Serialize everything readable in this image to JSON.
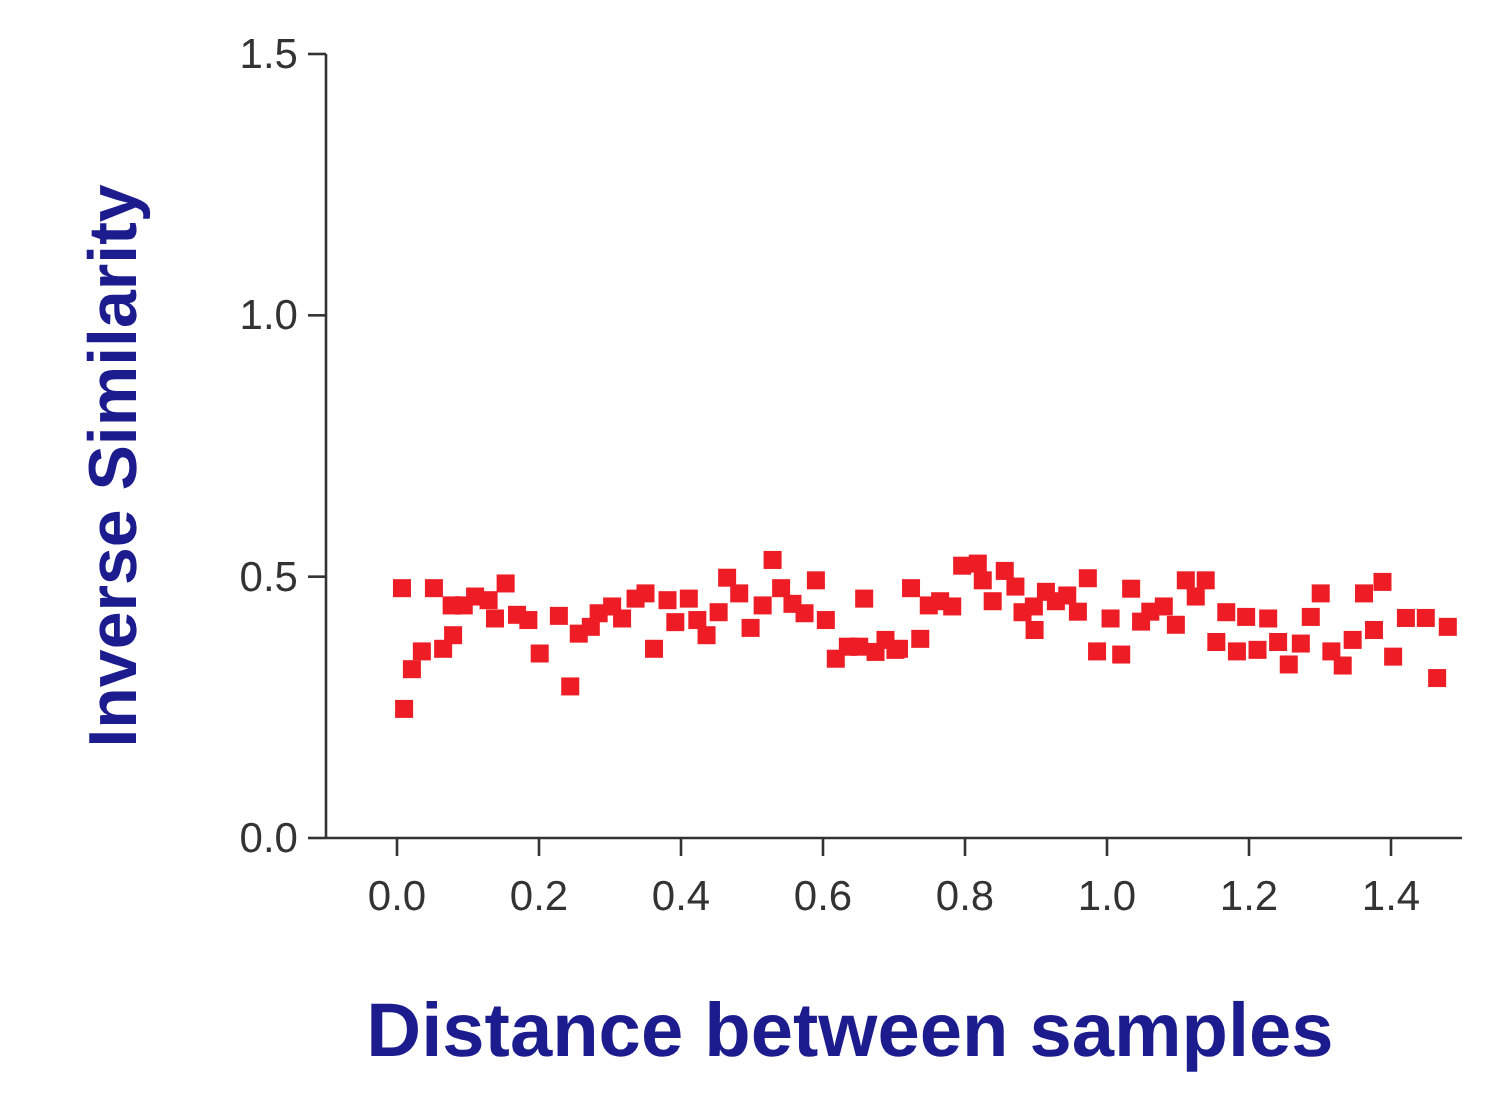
{
  "chart_data": {
    "type": "scatter",
    "xlabel": "Distance between samples",
    "ylabel": "Inverse Similarity",
    "xlim": [
      -0.1,
      1.5
    ],
    "xticks": [
      {
        "value": 0,
        "label": "0.0"
      },
      0.2,
      0.4,
      0.6,
      0.8,
      {
        "value": 1,
        "label": "1.0"
      },
      1.2,
      1.4
    ],
    "ylim": [
      0,
      1.5
    ],
    "yticks": [
      {
        "value": 0,
        "label": "0.0"
      },
      0.5,
      {
        "value": 1,
        "label": "1.0"
      },
      1.5
    ],
    "marker": "square",
    "grid": false,
    "series": [
      {
        "color": "#ee1c25",
        "x": [
          0.007,
          0.01,
          0.021,
          0.035,
          0.052,
          0.065,
          0.079,
          0.077,
          0.094,
          0.11,
          0.129,
          0.138,
          0.153,
          0.169,
          0.185,
          0.201,
          0.228,
          0.244,
          0.256,
          0.273,
          0.284,
          0.303,
          0.317,
          0.336,
          0.35,
          0.362,
          0.381,
          0.392,
          0.411,
          0.423,
          0.436,
          0.453,
          0.465,
          0.482,
          0.498,
          0.515,
          0.529,
          0.541,
          0.557,
          0.574,
          0.59,
          0.604,
          0.618,
          0.635,
          0.651,
          0.658,
          0.674,
          0.688,
          0.702,
          0.707,
          0.724,
          0.737,
          0.749,
          0.765,
          0.782,
          0.796,
          0.818,
          0.825,
          0.839,
          0.856,
          0.871,
          0.881,
          0.897,
          0.898,
          0.914,
          0.928,
          0.944,
          0.959,
          0.973,
          0.986,
          1.005,
          1.02,
          1.034,
          1.048,
          1.061,
          1.08,
          1.097,
          1.111,
          1.125,
          1.139,
          1.154,
          1.168,
          1.183,
          1.196,
          1.212,
          1.227,
          1.241,
          1.256,
          1.273,
          1.287,
          1.301,
          1.316,
          1.332,
          1.346,
          1.362,
          1.376,
          1.388,
          1.403,
          1.421,
          1.449,
          1.465,
          1.48
        ],
        "values": [
          0.478,
          0.247,
          0.323,
          0.357,
          0.478,
          0.362,
          0.388,
          0.445,
          0.445,
          0.462,
          0.455,
          0.42,
          0.487,
          0.427,
          0.417,
          0.353,
          0.425,
          0.29,
          0.391,
          0.404,
          0.43,
          0.443,
          0.42,
          0.458,
          0.468,
          0.362,
          0.455,
          0.413,
          0.458,
          0.417,
          0.388,
          0.432,
          0.498,
          0.468,
          0.402,
          0.445,
          0.532,
          0.478,
          0.448,
          0.43,
          0.493,
          0.417,
          0.343,
          0.366,
          0.366,
          0.458,
          0.356,
          0.379,
          0.36,
          0.362,
          0.478,
          0.381,
          0.445,
          0.453,
          0.443,
          0.521,
          0.525,
          0.493,
          0.453,
          0.511,
          0.481,
          0.432,
          0.443,
          0.398,
          0.471,
          0.453,
          0.464,
          0.433,
          0.497,
          0.357,
          0.42,
          0.351,
          0.477,
          0.414,
          0.433,
          0.443,
          0.408,
          0.493,
          0.462,
          0.493,
          0.375,
          0.432,
          0.357,
          0.423,
          0.36,
          0.42,
          0.375,
          0.332,
          0.372,
          0.423,
          0.468,
          0.357,
          0.33,
          0.379,
          0.468,
          0.398,
          0.49,
          0.347,
          0.421,
          0.421,
          0.306,
          0.404
        ]
      }
    ]
  }
}
